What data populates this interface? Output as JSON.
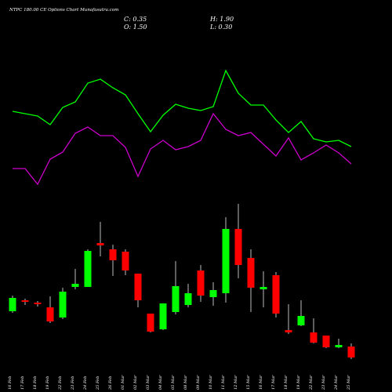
{
  "chart_data": {
    "type": "candlestick",
    "title": "NTPC 180.00 CE Options Chart Munafasutra.com",
    "ohlc_labels": [
      "C: 0.35",
      "H: 1.90",
      "O: 1.50",
      "L: 0.30"
    ],
    "categories": [
      "16 Feb",
      "17 Feb",
      "18 Feb",
      "19 Feb",
      "22 Feb",
      "23 Feb",
      "24 Feb",
      "25 Feb",
      "26 Feb",
      "01 Mar",
      "02 Mar",
      "03 Mar",
      "04 Mar",
      "05 Mar",
      "08 Mar",
      "09 Mar",
      "10 Mar",
      "11 Mar",
      "12 Mar",
      "15 Mar",
      "16 Mar",
      "17 Mar",
      "18 Mar",
      "19 Mar",
      "22 Mar",
      "23 Mar",
      "24 Mar",
      "25 Mar"
    ],
    "open": [
      0.73,
      0.87,
      0.84,
      0.78,
      0.65,
      1.04,
      1.04,
      1.6,
      1.52,
      1.49,
      1.21,
      0.7,
      0.5,
      0.72,
      0.81,
      1.25,
      0.91,
      0.96,
      1.78,
      1.41,
      1.01,
      1.19,
      0.49,
      0.55,
      0.46,
      0.42,
      0.27,
      0.28
    ],
    "high": [
      0.93,
      0.89,
      0.86,
      0.92,
      1.03,
      1.27,
      1.52,
      1.87,
      1.58,
      1.52,
      1.21,
      0.7,
      0.83,
      1.37,
      1.08,
      1.32,
      1.1,
      1.93,
      2.1,
      1.52,
      1.24,
      1.23,
      0.82,
      0.87,
      0.64,
      0.42,
      0.38,
      0.32
    ],
    "low": [
      0.71,
      0.81,
      0.79,
      0.58,
      0.63,
      1.01,
      1.04,
      1.43,
      1.18,
      1.19,
      0.78,
      0.46,
      0.49,
      0.69,
      0.78,
      0.85,
      0.8,
      0.84,
      1.15,
      0.72,
      0.78,
      0.65,
      0.44,
      0.54,
      0.32,
      0.26,
      0.26,
      0.12
    ],
    "close": [
      0.9,
      0.85,
      0.82,
      0.6,
      0.98,
      1.08,
      1.5,
      1.57,
      1.38,
      1.25,
      0.87,
      0.47,
      0.83,
      1.05,
      0.96,
      0.93,
      1.0,
      1.78,
      1.32,
      1.03,
      1.04,
      0.7,
      0.46,
      0.67,
      0.33,
      0.27,
      0.3,
      0.14
    ],
    "up_color": "#00ff00",
    "down_color": "#ff0000",
    "series": [
      {
        "color": "#00ff00",
        "values": [
          3.28,
          3.25,
          3.22,
          3.11,
          3.33,
          3.4,
          3.64,
          3.69,
          3.58,
          3.49,
          3.25,
          3.02,
          3.23,
          3.37,
          3.32,
          3.29,
          3.34,
          3.8,
          3.51,
          3.36,
          3.36,
          3.17,
          3.01,
          3.15,
          2.93,
          2.89,
          2.91,
          2.83
        ]
      },
      {
        "color": "#cc00cc",
        "values": [
          2.55,
          2.55,
          2.35,
          2.67,
          2.76,
          3.0,
          3.08,
          2.97,
          2.97,
          2.82,
          2.45,
          2.8,
          2.91,
          2.79,
          2.83,
          2.91,
          3.25,
          3.05,
          2.97,
          3.01,
          2.86,
          2.71,
          2.94,
          2.66,
          2.75,
          2.85,
          2.75,
          2.61
        ]
      }
    ]
  }
}
